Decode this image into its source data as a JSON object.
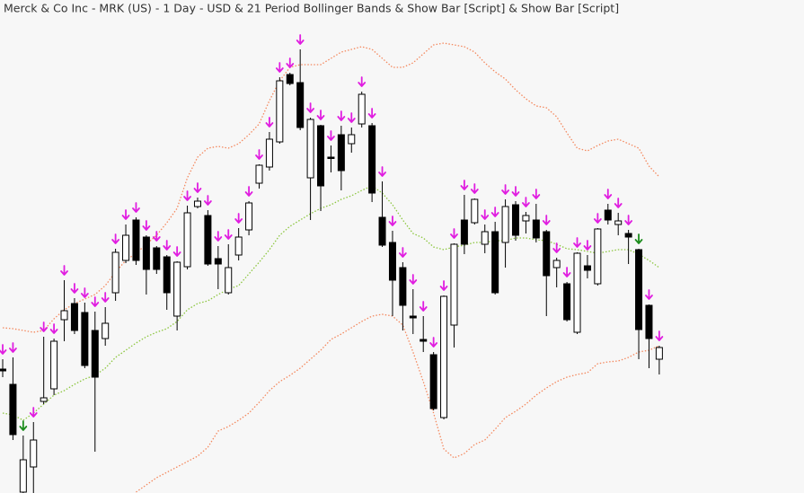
{
  "chart_data": {
    "type": "candlestick",
    "title": "Merck & Co Inc - MRK (US) - 1 Day - USD & 21 Period Bollinger Bands & Show Bar [Script] & Show Bar [Script]",
    "ylim": [
      0,
      549
    ],
    "up_color": "#ffffff",
    "down_color": "#000000",
    "open": [
      138,
      121,
      1,
      29,
      102,
      116,
      193,
      211,
      201,
      181,
      172,
      223,
      259,
      304,
      285,
      273,
      263,
      197,
      252,
      319,
      309,
      261,
      223,
      265,
      293,
      345,
      363,
      391,
      466,
      457,
      351,
      409,
      374,
      399,
      389,
      411,
      409,
      307,
      279,
      251,
      197,
      171,
      154,
      84,
      187,
      304,
      301,
      277,
      291,
      279,
      321,
      303,
      304,
      291,
      251,
      233,
      179,
      253,
      233,
      315,
      299,
      289,
      271,
      209,
      149
    ],
    "high": [
      149,
      151,
      64,
      79,
      174,
      172,
      237,
      217,
      212,
      202,
      207,
      272,
      299,
      307,
      287,
      275,
      265,
      258,
      320,
      329,
      315,
      275,
      277,
      295,
      325,
      366,
      402,
      463,
      468,
      494,
      418,
      410,
      387,
      409,
      407,
      447,
      412,
      347,
      292,
      257,
      227,
      197,
      157,
      220,
      278,
      332,
      328,
      299,
      302,
      327,
      325,
      313,
      322,
      293,
      262,
      235,
      268,
      265,
      295,
      322,
      312,
      293,
      272,
      210,
      164
    ],
    "low": [
      129,
      59,
      0,
      0,
      99,
      109,
      169,
      177,
      139,
      46,
      164,
      214,
      256,
      254,
      221,
      244,
      204,
      181,
      249,
      317,
      253,
      227,
      221,
      259,
      287,
      339,
      359,
      389,
      454,
      404,
      304,
      314,
      357,
      337,
      379,
      407,
      324,
      274,
      197,
      181,
      177,
      157,
      92,
      82,
      162,
      266,
      299,
      267,
      221,
      251,
      281,
      289,
      279,
      197,
      229,
      191,
      177,
      239,
      231,
      299,
      287,
      255,
      149,
      139,
      132
    ],
    "close": [
      136,
      65,
      37,
      59,
      106,
      169,
      203,
      181,
      142,
      129,
      189,
      268,
      287,
      259,
      249,
      249,
      223,
      257,
      312,
      325,
      255,
      255,
      251,
      285,
      323,
      365,
      394,
      459,
      456,
      407,
      416,
      342,
      373,
      359,
      399,
      444,
      334,
      276,
      237,
      209,
      195,
      169,
      94,
      219,
      277,
      277,
      327,
      291,
      223,
      319,
      287,
      309,
      284,
      242,
      259,
      193,
      267,
      248,
      294,
      304,
      303,
      285,
      182,
      172,
      162
    ],
    "arrow_colors": [
      "#e01ee0",
      "#e01ee0",
      "#1c8c1c",
      "#e01ee0",
      "#e01ee0",
      "#e01ee0",
      "#e01ee0",
      "#e01ee0",
      "#e01ee0",
      "#e01ee0",
      "#e01ee0",
      "#e01ee0",
      "#e01ee0",
      "#e01ee0",
      "#e01ee0",
      "#e01ee0",
      "#e01ee0",
      "#e01ee0",
      "#e01ee0",
      "#e01ee0",
      "#e01ee0",
      "#e01ee0",
      "#e01ee0",
      "#e01ee0",
      "#e01ee0",
      "#e01ee0",
      "#e01ee0",
      "#e01ee0",
      "#e01ee0",
      "#e01ee0",
      "#e01ee0",
      "#e01ee0",
      "#e01ee0",
      "#e01ee0",
      "#e01ee0",
      "#e01ee0",
      "#e01ee0",
      "#e01ee0",
      "#e01ee0",
      "#e01ee0",
      "#e01ee0",
      "#e01ee0",
      "#e01ee0",
      "#e01ee0",
      "#e01ee0",
      "#e01ee0",
      "#e01ee0",
      "#e01ee0",
      "#e01ee0",
      "#e01ee0",
      "#e01ee0",
      "#e01ee0",
      "#e01ee0",
      "#e01ee0",
      "#e01ee0",
      "#e01ee0",
      "#e01ee0",
      "#e01ee0",
      "#e01ee0",
      "#e01ee0",
      "#e01ee0",
      "#e01ee0",
      "#1c8c1c",
      "#e01ee0",
      "#e01ee0"
    ],
    "bands": [
      {
        "color": "#f4895f",
        "values": [
          184,
          183,
          181,
          179,
          181,
          194,
          204,
          211,
          216,
          221,
          231,
          246,
          259,
          267,
          277,
          287,
          301,
          317,
          351,
          374,
          384,
          386,
          384,
          389,
          399,
          411,
          437,
          459,
          474,
          477,
          477,
          477,
          484,
          491,
          494,
          497,
          494,
          484,
          474,
          474,
          479,
          489,
          499,
          501,
          499,
          497,
          491,
          479,
          469,
          461,
          449,
          439,
          431,
          429,
          419,
          401,
          384,
          381,
          387,
          392,
          394,
          389,
          384,
          364,
          352
        ]
      },
      {
        "color": "#8cc63f",
        "values": [
          89,
          87,
          81,
          89,
          99,
          109,
          114,
          121,
          127,
          131,
          139,
          151,
          159,
          167,
          174,
          179,
          183,
          191,
          204,
          211,
          214,
          221,
          227,
          231,
          244,
          257,
          271,
          287,
          297,
          304,
          311,
          317,
          321,
          327,
          331,
          337,
          342,
          334,
          321,
          304,
          289,
          284,
          274,
          271,
          274,
          276,
          279,
          279,
          281,
          281,
          284,
          284,
          282,
          281,
          277,
          272,
          271,
          269,
          267,
          269,
          271,
          271,
          266,
          259,
          251
        ]
      },
      {
        "color": "#f4895f",
        "values": [
          null,
          null,
          null,
          null,
          null,
          null,
          null,
          null,
          null,
          null,
          null,
          null,
          null,
          1,
          9,
          17,
          23,
          29,
          35,
          41,
          51,
          69,
          74,
          81,
          89,
          101,
          114,
          124,
          131,
          139,
          149,
          159,
          171,
          177,
          184,
          191,
          197,
          199,
          197,
          187,
          157,
          124,
          89,
          49,
          39,
          44,
          54,
          59,
          71,
          84,
          91,
          99,
          109,
          117,
          124,
          129,
          132,
          134,
          144,
          146,
          147,
          151,
          157,
          159,
          164
        ]
      }
    ]
  }
}
